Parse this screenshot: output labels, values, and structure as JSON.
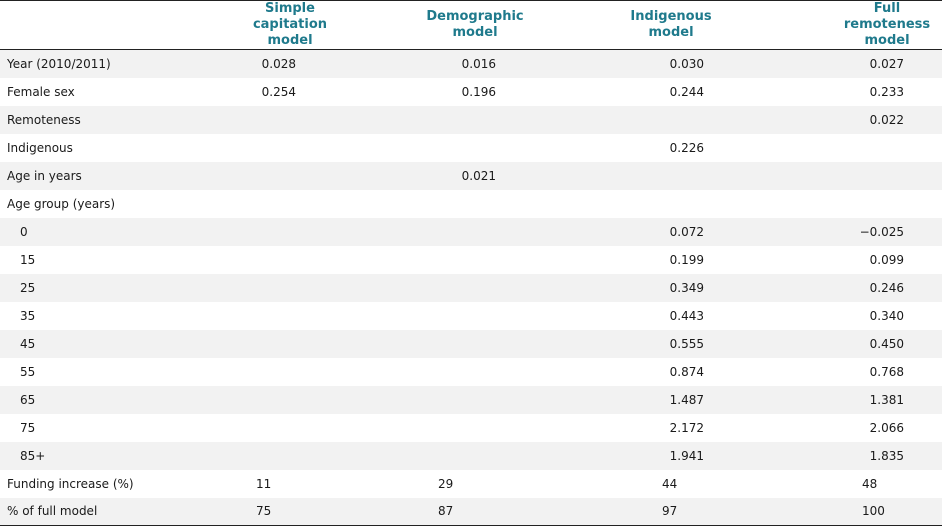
{
  "headers": [
    [
      "Simple",
      "capitation model"
    ],
    [
      "Demographic",
      "model"
    ],
    [
      "Indigenous",
      "model"
    ],
    [
      "Full remoteness",
      "model"
    ]
  ],
  "rows": [
    {
      "label": "Year (2010/2011)",
      "indent": false,
      "align": "right",
      "values": [
        "0.028",
        "0.016",
        "0.030",
        "0.027"
      ]
    },
    {
      "label": "Female sex",
      "indent": false,
      "align": "right",
      "values": [
        "0.254",
        "0.196",
        "0.244",
        "0.233"
      ]
    },
    {
      "label": "Remoteness",
      "indent": false,
      "align": "right",
      "values": [
        "",
        "",
        "",
        "0.022"
      ]
    },
    {
      "label": "Indigenous",
      "indent": false,
      "align": "right",
      "values": [
        "",
        "",
        "0.226",
        ""
      ]
    },
    {
      "label": "Age in years",
      "indent": false,
      "align": "right",
      "values": [
        "",
        "0.021",
        "",
        ""
      ]
    },
    {
      "label": "Age group (years)",
      "indent": false,
      "align": "right",
      "values": [
        "",
        "",
        "",
        ""
      ]
    },
    {
      "label": "0",
      "indent": true,
      "align": "right",
      "values": [
        "",
        "",
        "0.072",
        "−0.025"
      ]
    },
    {
      "label": "15",
      "indent": true,
      "align": "right",
      "values": [
        "",
        "",
        "0.199",
        "0.099"
      ]
    },
    {
      "label": "25",
      "indent": true,
      "align": "right",
      "values": [
        "",
        "",
        "0.349",
        "0.246"
      ]
    },
    {
      "label": "35",
      "indent": true,
      "align": "right",
      "values": [
        "",
        "",
        "0.443",
        "0.340"
      ]
    },
    {
      "label": "45",
      "indent": true,
      "align": "right",
      "values": [
        "",
        "",
        "0.555",
        "0.450"
      ]
    },
    {
      "label": "55",
      "indent": true,
      "align": "right",
      "values": [
        "",
        "",
        "0.874",
        "0.768"
      ]
    },
    {
      "label": "65",
      "indent": true,
      "align": "right",
      "values": [
        "",
        "",
        "1.487",
        "1.381"
      ]
    },
    {
      "label": "75",
      "indent": true,
      "align": "right",
      "values": [
        "",
        "",
        "2.172",
        "2.066"
      ]
    },
    {
      "label": "85+",
      "indent": true,
      "align": "right",
      "values": [
        "",
        "",
        "1.941",
        "1.835"
      ]
    },
    {
      "label": "Funding increase (%)",
      "indent": false,
      "align": "left",
      "values": [
        "11",
        "29",
        "44",
        "48"
      ]
    },
    {
      "label": "% of full model",
      "indent": false,
      "align": "left",
      "values": [
        "75",
        "87",
        "97",
        "100"
      ]
    }
  ]
}
